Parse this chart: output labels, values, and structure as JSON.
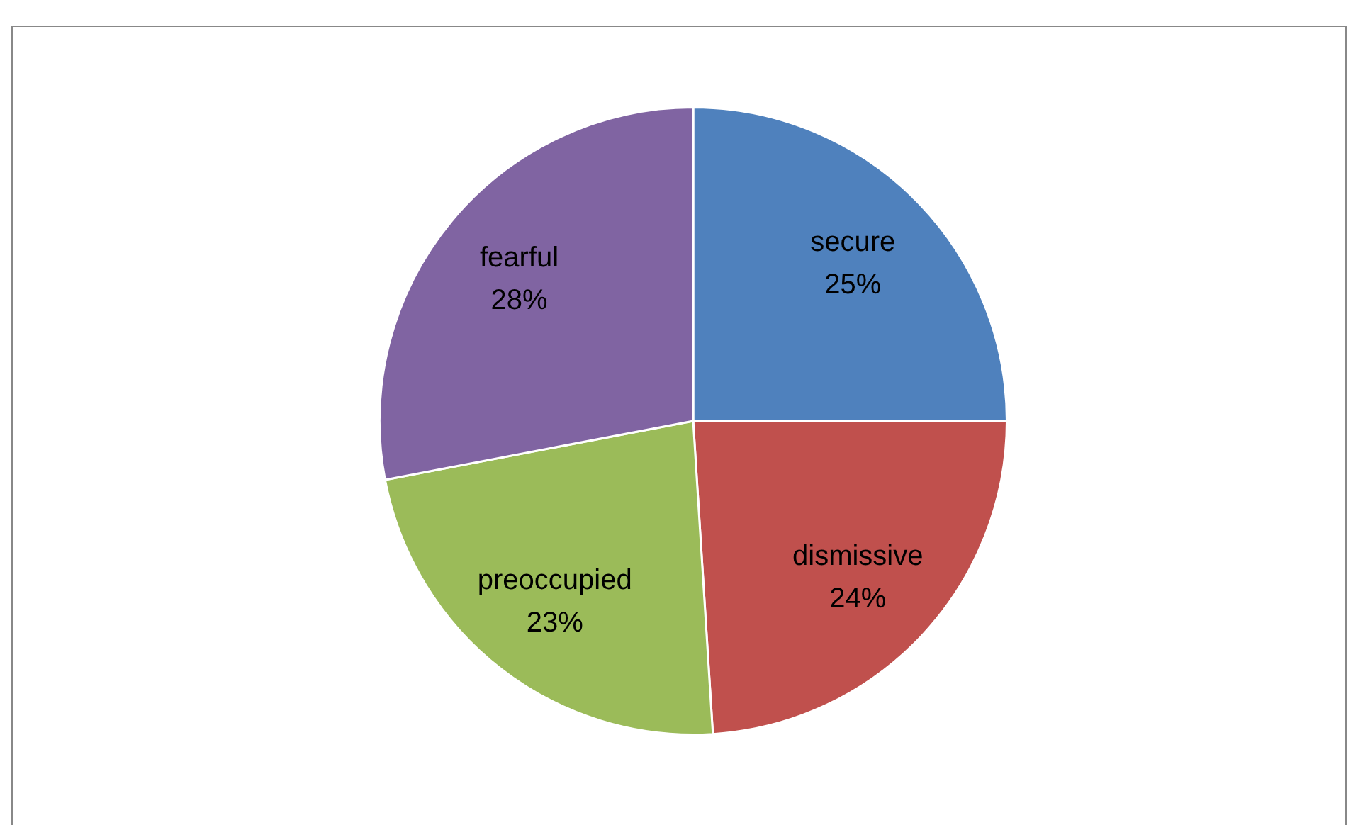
{
  "chart_data": {
    "type": "pie",
    "categories": [
      "secure",
      "dismissive",
      "preoccupied",
      "fearful"
    ],
    "values": [
      25,
      24,
      23,
      28
    ],
    "colors": [
      "#4f81bd",
      "#c0504d",
      "#9bbb59",
      "#8064a2"
    ],
    "value_labels": [
      "25%",
      "24%",
      "23%",
      "28%"
    ],
    "legend": false
  }
}
